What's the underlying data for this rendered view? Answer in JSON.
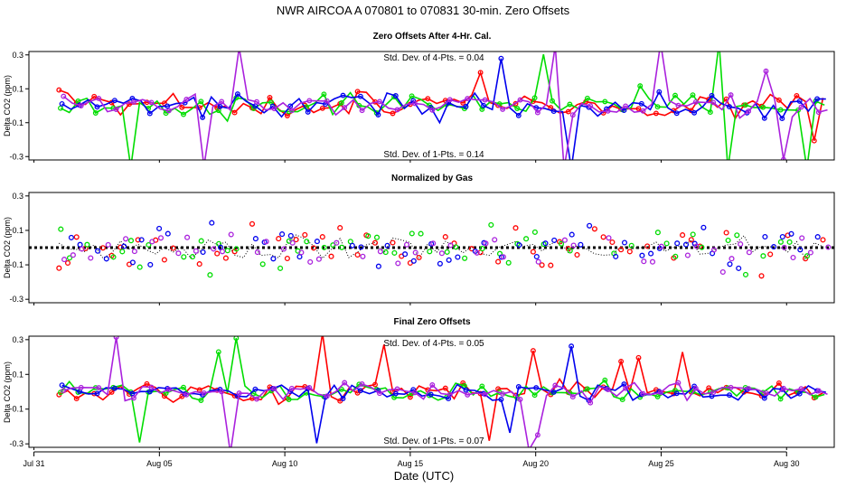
{
  "title": "NWR   AIRCOA A   070801 to 070831   30-min. Zero Offsets",
  "chart_data": {
    "type": "scatter",
    "xlabel": "Date (UTC)",
    "x_range_days": [
      -0.2,
      31.9
    ],
    "x_ticks": [
      {
        "day": 0,
        "label": "Jul 31"
      },
      {
        "day": 5,
        "label": "Aug 05"
      },
      {
        "day": 10,
        "label": "Aug 10"
      },
      {
        "day": 15,
        "label": "Aug 15"
      },
      {
        "day": 20,
        "label": "Aug 20"
      },
      {
        "day": 25,
        "label": "Aug 25"
      },
      {
        "day": 30,
        "label": "Aug 30"
      }
    ],
    "series_colors": {
      "gas1": "#ff0000",
      "gas2": "#00dd00",
      "gas3": "#0000ee",
      "gas4": "#aa22dd",
      "trend": "#000000"
    },
    "panels": [
      {
        "title": "Zero Offsets After 4-Hr. Cal.",
        "ylabel": "Delta CO2 (ppm)",
        "ylim": [
          -0.32,
          0.32
        ],
        "yticks": [
          -0.3,
          -0.1,
          0.1,
          0.3
        ],
        "annotations": [
          {
            "text": "Std. Dev. of 4-Pts. =  0.04",
            "position": "top-center"
          },
          {
            "text": "Std. Dev. of 1-Pts. =  0.14",
            "position": "bottom-center"
          }
        ],
        "style": "lines-and-points",
        "noise": 0.1
      },
      {
        "title": "Normalized by Gas",
        "ylabel": "Delta CO2 (ppm)",
        "ylim": [
          -0.32,
          0.32
        ],
        "yticks": [
          -0.3,
          -0.1,
          0.1,
          0.3
        ],
        "annotations": [],
        "style": "points-with-dotted-trend",
        "noise": 0.15
      },
      {
        "title": "Final Zero Offsets",
        "ylabel": "Delta CO2 (ppm)",
        "ylim": [
          -0.32,
          0.32
        ],
        "yticks": [
          -0.3,
          -0.1,
          0.1,
          0.3
        ],
        "annotations": [
          {
            "text": "Std. Dev. of 4-Pts. =  0.05",
            "position": "top-center"
          },
          {
            "text": "Std. Dev. of 1-Pts. =  0.07",
            "position": "bottom-center"
          }
        ],
        "style": "lines-and-points",
        "noise": 0.07
      }
    ]
  }
}
